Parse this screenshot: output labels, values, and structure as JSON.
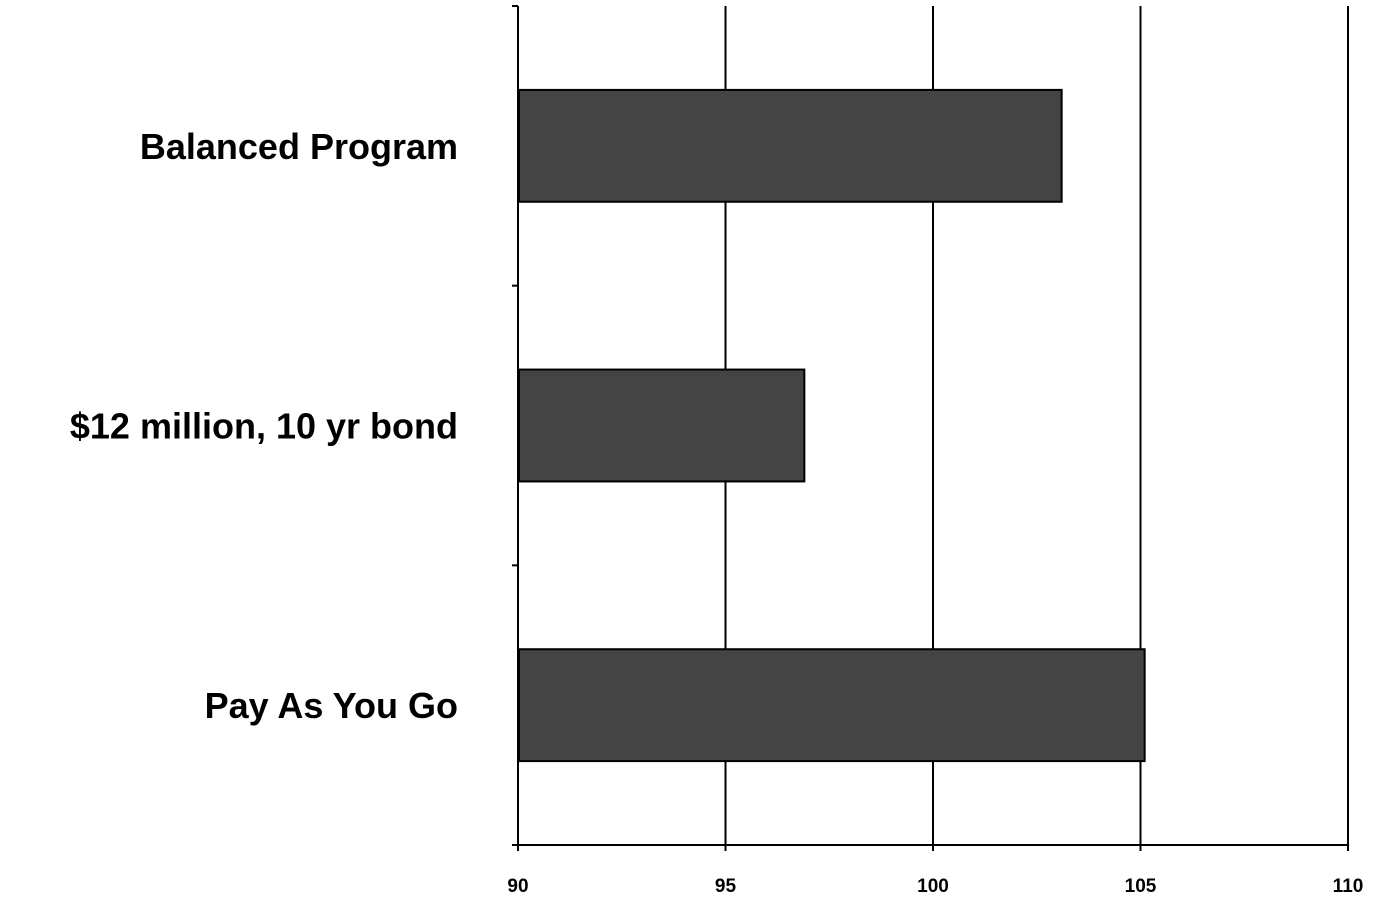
{
  "chart_data": {
    "type": "bar",
    "orientation": "horizontal",
    "title": "",
    "xlabel": "",
    "ylabel": "",
    "categories": [
      "Balanced Program",
      "$12 million, 10 yr bond",
      "Pay As You Go"
    ],
    "values": [
      103.1,
      96.9,
      105.1
    ],
    "xlim": [
      90,
      110
    ],
    "x_ticks": [
      "90",
      "95",
      "100",
      "105",
      "110"
    ],
    "grid": "vertical",
    "legend": "none",
    "colors": {
      "bar_fill": "#444444",
      "bar_stroke": "#000000",
      "grid": "#000000",
      "background": "#ffffff"
    }
  }
}
